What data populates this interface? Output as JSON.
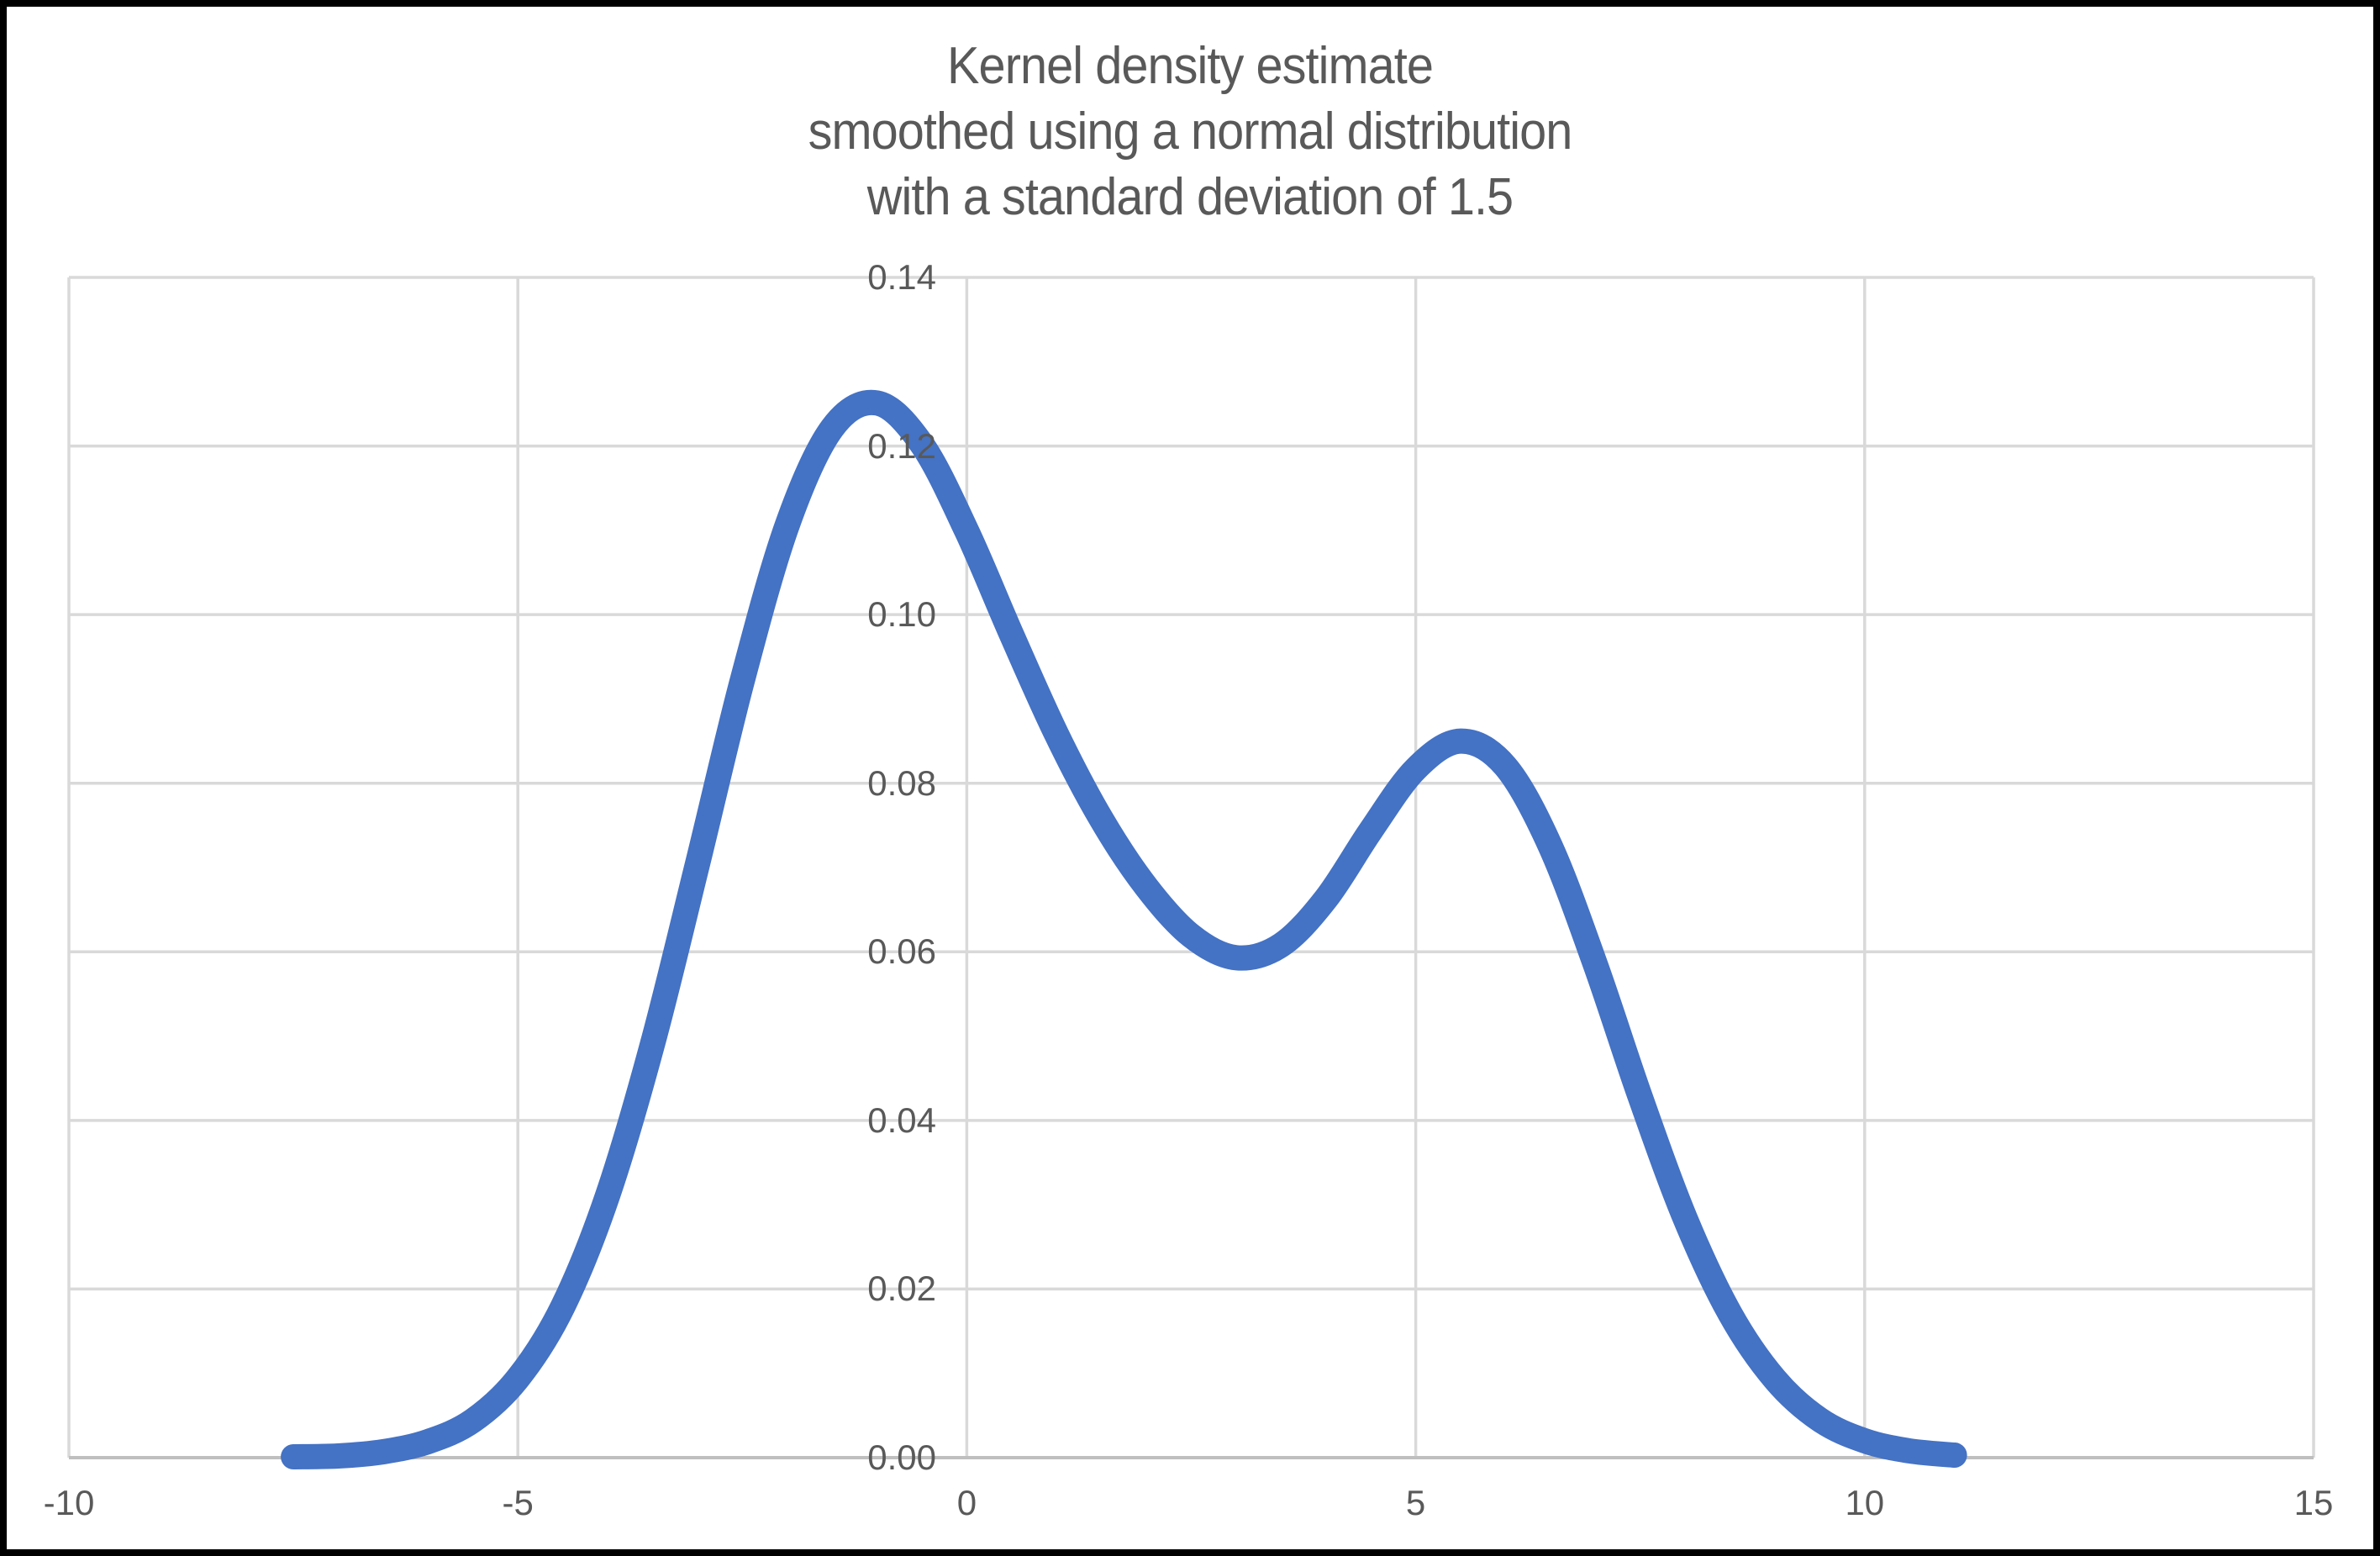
{
  "window": {
    "background": "#FFFFFF",
    "border_color": "#000000"
  },
  "title": {
    "lines": [
      "Kernel density estimate",
      "smoothed using a normal distribution",
      "with a standard deviation of 1.5"
    ]
  },
  "colors": {
    "series_line": "#4472C4",
    "gridline": "#D9D9D9",
    "axis_line": "#BFBFBF",
    "tick_label": "#595959",
    "title_text": "#595959"
  },
  "chart_data": {
    "type": "line",
    "title": "Kernel density estimate smoothed using a normal distribution with a standard deviation of 1.5",
    "xlabel": "",
    "ylabel": "",
    "xlim": [
      -10,
      15
    ],
    "ylim": [
      0,
      0.14
    ],
    "grid": true,
    "legend": false,
    "x_ticks": [
      -10,
      -5,
      0,
      5,
      10,
      15
    ],
    "x_tick_labels": [
      "-10",
      "-5",
      "0",
      "5",
      "10",
      "15"
    ],
    "y_ticks": [
      0,
      0.02,
      0.04,
      0.06,
      0.08,
      0.1,
      0.12,
      0.14
    ],
    "y_tick_labels": [
      "0.00",
      "0.02",
      "0.04",
      "0.06",
      "0.08",
      "0.10",
      "0.12",
      "0.14"
    ],
    "series": [
      {
        "name": "Kernel density estimate",
        "x": [
          -7.5,
          -7,
          -6.5,
          -6,
          -5.5,
          -5,
          -4.5,
          -4,
          -3.5,
          -3,
          -2.5,
          -2,
          -1.5,
          -1,
          -0.5,
          0,
          0.5,
          1,
          1.5,
          2,
          2.5,
          3,
          3.5,
          4,
          4.5,
          5,
          5.5,
          6,
          6.5,
          7,
          7.5,
          8,
          8.5,
          9,
          9.5,
          10,
          10.5,
          11
        ],
        "y": [
          0.0001,
          0.0002,
          0.0007,
          0.0019,
          0.0044,
          0.0094,
          0.0179,
          0.0311,
          0.0491,
          0.0704,
          0.0922,
          0.1106,
          0.1221,
          0.1251,
          0.1202,
          0.1099,
          0.0976,
          0.0858,
          0.0757,
          0.0677,
          0.0619,
          0.0593,
          0.0608,
          0.0663,
          0.0744,
          0.0817,
          0.085,
          0.082,
          0.0725,
          0.0585,
          0.0428,
          0.0284,
          0.0171,
          0.0093,
          0.0045,
          0.002,
          0.0008,
          0.0003
        ]
      }
    ]
  }
}
